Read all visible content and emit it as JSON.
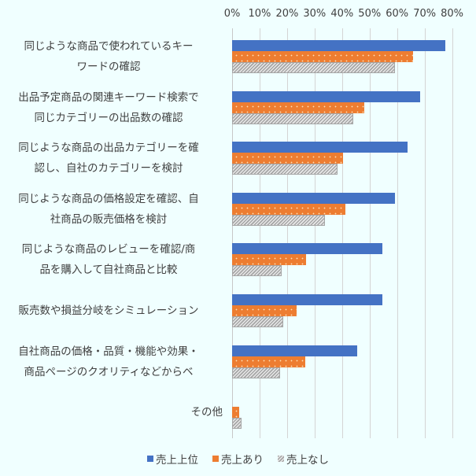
{
  "chart_data": {
    "type": "bar",
    "orientation": "horizontal",
    "title": "",
    "xlabel": "",
    "ylabel": "",
    "xlim": [
      0,
      80
    ],
    "x_ticks": [
      "0%",
      "10%",
      "20%",
      "30%",
      "40%",
      "50%",
      "60%",
      "70%",
      "80%"
    ],
    "grid": true,
    "legend_position": "bottom",
    "categories": [
      "同じような商品で使われているキーワードの確認",
      "出品予定商品の関連キーワード検索で同じカテゴリーの出品数の確認",
      "同じような商品の出品カテゴリーを確認し、自社のカテゴリーを検討",
      "同じような商品の価格設定を確認、自社商品の販売価格を検討",
      "同じような商品のレビューを確認/商品を購入して自社商品と比較",
      "販売数や損益分岐をシミュレーション",
      "自社商品の価格・品質・機能や効果・商品ページのクオリティなどからベ",
      "その他"
    ],
    "category_label_lines": [
      [
        "同じような商品で使われているキー",
        "ワードの確認"
      ],
      [
        "出品予定商品の関連キーワード検索で",
        "同じカテゴリーの出品数の確認"
      ],
      [
        "同じような商品の出品カテゴリーを確",
        "認し、自社のカテゴリーを検討"
      ],
      [
        "同じような商品の価格設定を確認、自",
        "社商品の販売価格を検討"
      ],
      [
        "同じような商品のレビューを確認/商",
        "品を購入して自社商品と比較"
      ],
      [
        "販売数や損益分岐をシミュレーション"
      ],
      [
        "自社商品の価格・品質・機能や効果・",
        "商品ページのクオリティなどからベ"
      ],
      [
        "その他"
      ]
    ],
    "series": [
      {
        "name": "売上上位",
        "color": "#4472c4",
        "pattern": "solid",
        "values": [
          77.6,
          68.5,
          63.9,
          59.3,
          54.7,
          54.7,
          45.6,
          0
        ]
      },
      {
        "name": "売上あり",
        "color": "#ed7d31",
        "pattern": "dotted",
        "values": [
          65.9,
          48.2,
          40.4,
          41.3,
          27.0,
          23.5,
          26.7,
          2.6
        ]
      },
      {
        "name": "売上なし",
        "color": "#a6a6a6",
        "pattern": "diagonal-hatch",
        "values": [
          59.2,
          44.0,
          38.3,
          33.8,
          18.0,
          18.6,
          17.4,
          3.4
        ]
      }
    ]
  },
  "legend": {
    "items": [
      {
        "label": "売上上位"
      },
      {
        "label": "売上あり"
      },
      {
        "label": "売上なし"
      }
    ]
  }
}
